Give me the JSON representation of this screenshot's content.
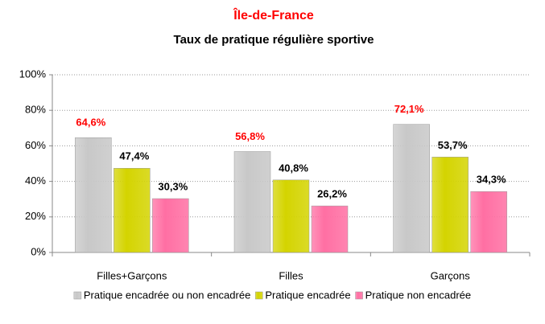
{
  "chart_data": {
    "type": "bar",
    "title": "Île-de-France",
    "subtitle": "Taux de pratique régulière sportive",
    "categories": [
      "Filles+Garçons",
      "Filles",
      "Garçons"
    ],
    "series": [
      {
        "name": "Pratique encadrée ou non encadrée",
        "color": "#c8c8c8",
        "label_color": "#ff0000",
        "values": [
          64.6,
          56.8,
          72.1
        ],
        "value_labels": [
          "64,6%",
          "56,8%",
          "72,1%"
        ]
      },
      {
        "name": "Pratique encadrée",
        "color": "#d4d400",
        "label_color": "#000000",
        "values": [
          47.4,
          40.8,
          53.7
        ],
        "value_labels": [
          "47,4%",
          "40,8%",
          "53,7%"
        ]
      },
      {
        "name": "Pratique non encadrée",
        "color": "#ff6fa3",
        "label_color": "#000000",
        "values": [
          30.3,
          26.2,
          34.3
        ],
        "value_labels": [
          "30,3%",
          "26,2%",
          "34,3%"
        ]
      }
    ],
    "ylim": [
      0,
      100
    ],
    "yticks": [
      {
        "value": 0,
        "label": "0%"
      },
      {
        "value": 20,
        "label": "20%"
      },
      {
        "value": 40,
        "label": "40%"
      },
      {
        "value": 60,
        "label": "60%"
      },
      {
        "value": 80,
        "label": "80%"
      },
      {
        "value": 100,
        "label": "100%"
      }
    ],
    "grid": true,
    "legend": "bottom"
  }
}
